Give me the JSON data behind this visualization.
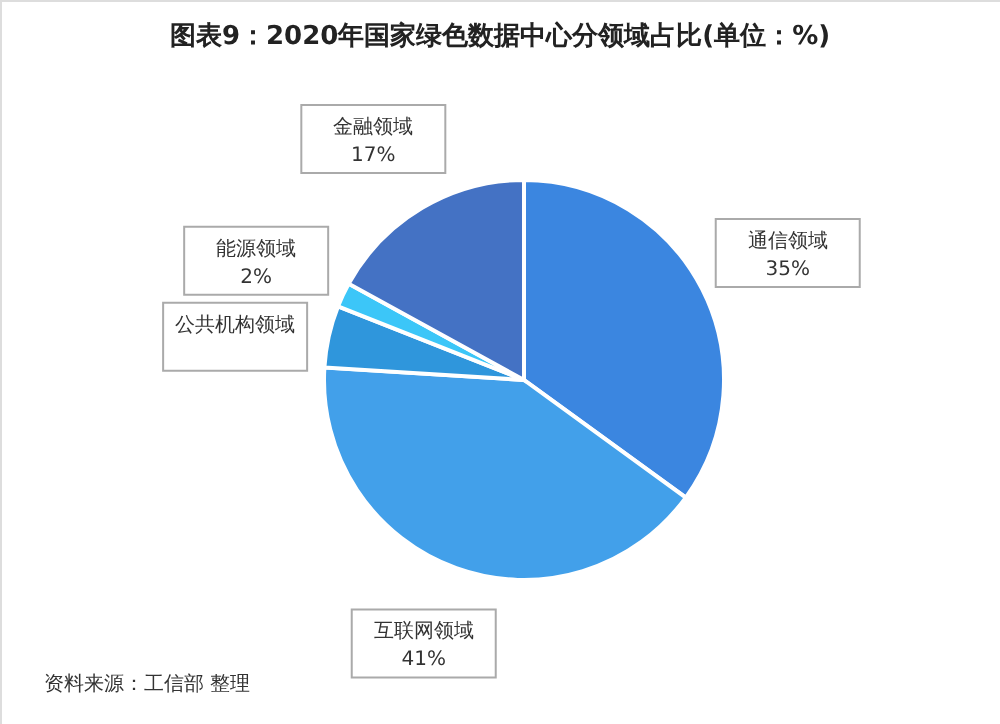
{
  "chart_data": {
    "type": "pie",
    "title": "图表9：2020年国家绿色数据中心分领域占比(单位：%)",
    "categories": [
      "通信领域",
      "互联网领域",
      "公共机构领域",
      "能源领域",
      "金融领域"
    ],
    "values": [
      35,
      41,
      5,
      2,
      17
    ],
    "value_labels": [
      "35%",
      "41%",
      null,
      "2%",
      "17%"
    ],
    "colors": [
      "#3b86e0",
      "#42a0ea",
      "#2f96dc",
      "#3cc6f8",
      "#4472c4"
    ],
    "annotations": [
      "资料来源：工信部 整理"
    ]
  }
}
